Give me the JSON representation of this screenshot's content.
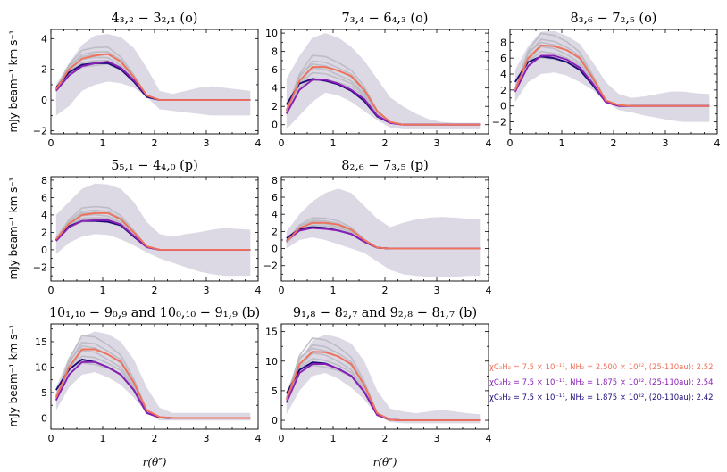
{
  "figure": {
    "ylabel": "mJy beam⁻¹ km s⁻¹",
    "xlabel": "r(θ″)"
  },
  "colors": {
    "model_a": "#f0715a",
    "model_b": "#8a1fb5",
    "model_c": "#1f0a7a",
    "grid_models": "#b9b9c2",
    "obs_band": "#dcd8e4"
  },
  "legend": [
    {
      "chi": "χC₃H₂ = 7.5 × 10⁻¹¹, ",
      "nh": "NH₂ = 2.500 × 10²², (25-110au): 2.52",
      "color": "#f0715a"
    },
    {
      "chi": "χC₃H₂ = 7.5 × 10⁻¹¹, ",
      "nh": "NH₂ = 1.875 × 10²², (25-110au): 2.54",
      "color": "#8a1fb5"
    },
    {
      "chi": "χC₃H₂ = 7.5 × 10⁻¹¹, ",
      "nh": "NH₂ = 1.875 × 10²², (20-110au): 2.42",
      "color": "#1f0a7a"
    }
  ],
  "chart_data": [
    {
      "type": "line",
      "title": "4₃,₂ − 3₂,₁ (o)",
      "xlim": [
        0,
        4
      ],
      "ylim": [
        -2.2,
        4.6
      ],
      "yticks": [
        -2,
        0,
        2,
        4
      ],
      "xticks": [
        0,
        1,
        2,
        3,
        4
      ],
      "x": [
        0.1,
        0.35,
        0.6,
        0.85,
        1.1,
        1.35,
        1.6,
        1.85,
        2.1,
        2.35,
        2.6,
        2.85,
        3.1,
        3.35,
        3.6,
        3.85
      ],
      "band_upper": [
        1.0,
        2.4,
        3.6,
        4.2,
        4.3,
        4.1,
        3.4,
        2.1,
        0.6,
        0.4,
        0.6,
        0.8,
        0.9,
        0.8,
        0.7,
        0.6
      ],
      "band_lower": [
        -1.0,
        -0.4,
        0.6,
        1.0,
        1.2,
        1.1,
        0.8,
        0.2,
        -0.6,
        -0.7,
        -0.8,
        -0.9,
        -1.0,
        -1.0,
        -1.0,
        -1.0
      ],
      "series": [
        {
          "name": "model_a",
          "values": [
            0.7,
            2.0,
            2.7,
            2.9,
            3.0,
            2.5,
            1.5,
            0.3,
            0.0,
            0,
            0,
            0,
            0,
            0,
            0,
            0
          ]
        },
        {
          "name": "model_b",
          "values": [
            0.6,
            1.6,
            2.2,
            2.4,
            2.5,
            2.1,
            1.3,
            0.3,
            0.0,
            0,
            0,
            0,
            0,
            0,
            0,
            0
          ]
        },
        {
          "name": "model_c",
          "values": [
            0.8,
            1.8,
            2.3,
            2.4,
            2.4,
            2.0,
            1.2,
            0.2,
            0.0,
            0,
            0,
            0,
            0,
            0,
            0,
            0
          ]
        }
      ]
    },
    {
      "type": "line",
      "title": "7₃,₄ − 6₄,₃ (o)",
      "xlim": [
        0,
        4
      ],
      "ylim": [
        -1,
        10.4
      ],
      "yticks": [
        0,
        2,
        4,
        6,
        8,
        10
      ],
      "xticks": [
        0,
        1,
        2,
        3,
        4
      ],
      "x": [
        0.1,
        0.35,
        0.6,
        0.85,
        1.1,
        1.35,
        1.6,
        1.85,
        2.1,
        2.35,
        2.6,
        2.85,
        3.1,
        3.35,
        3.6,
        3.85
      ],
      "band_upper": [
        5.0,
        7.5,
        9.5,
        10.0,
        9.5,
        8.5,
        7.0,
        5.0,
        3.0,
        2.0,
        1.2,
        0.6,
        0.3,
        0.2,
        0.2,
        0.2
      ],
      "band_lower": [
        -0.5,
        1.0,
        2.5,
        3.5,
        3.2,
        2.5,
        1.5,
        0.5,
        -0.3,
        -0.5,
        -0.5,
        -0.5,
        -0.5,
        -0.5,
        -0.5,
        -0.5
      ],
      "series": [
        {
          "name": "model_a",
          "values": [
            1.5,
            4.8,
            6.3,
            6.3,
            5.9,
            5.3,
            3.8,
            1.5,
            0.3,
            0,
            0,
            0,
            0,
            0,
            0,
            0
          ]
        },
        {
          "name": "model_b",
          "values": [
            1.2,
            3.8,
            4.9,
            4.9,
            4.5,
            3.8,
            2.8,
            1.0,
            0.2,
            0,
            0,
            0,
            0,
            0,
            0,
            0
          ]
        },
        {
          "name": "model_c",
          "values": [
            2.2,
            4.5,
            5.0,
            4.8,
            4.4,
            3.7,
            2.6,
            0.9,
            0.2,
            0,
            0,
            0,
            0,
            0,
            0,
            0
          ]
        }
      ]
    },
    {
      "type": "line",
      "title": "8₃,₆ − 7₂,₅ (o)",
      "xlim": [
        0,
        4
      ],
      "ylim": [
        -3.5,
        9.6
      ],
      "yticks": [
        -2,
        0,
        2,
        4,
        6,
        8
      ],
      "xticks": [
        0,
        1,
        2,
        3,
        4
      ],
      "x": [
        0.1,
        0.35,
        0.6,
        0.85,
        1.1,
        1.35,
        1.6,
        1.85,
        2.1,
        2.35,
        2.6,
        2.85,
        3.1,
        3.35,
        3.6,
        3.85
      ],
      "band_upper": [
        4.5,
        7.5,
        9.3,
        9.4,
        8.8,
        7.8,
        5.5,
        3.0,
        1.5,
        1.0,
        1.2,
        1.5,
        1.8,
        1.8,
        1.6,
        1.5
      ],
      "band_lower": [
        0.5,
        3.0,
        4.0,
        4.2,
        3.8,
        3.0,
        2.0,
        0.5,
        -0.5,
        -0.8,
        -1.2,
        -1.5,
        -1.8,
        -2.0,
        -2.0,
        -2.0
      ],
      "series": [
        {
          "name": "model_a",
          "values": [
            2.0,
            6.0,
            7.6,
            7.5,
            7.0,
            6.0,
            3.5,
            0.7,
            0.1,
            0,
            0,
            0,
            0,
            0,
            0,
            0
          ]
        },
        {
          "name": "model_b",
          "values": [
            1.8,
            5.0,
            6.3,
            6.3,
            5.8,
            4.8,
            2.8,
            0.5,
            0.0,
            0,
            0,
            0,
            0,
            0,
            0,
            0
          ]
        },
        {
          "name": "model_c",
          "values": [
            3.0,
            5.5,
            6.2,
            6.0,
            5.5,
            4.5,
            2.6,
            0.5,
            0.0,
            0,
            0,
            0,
            0,
            0,
            0,
            0
          ]
        }
      ]
    },
    {
      "type": "line",
      "title": "5₅,₁ − 4₄,₀ (p)",
      "xlim": [
        0,
        4
      ],
      "ylim": [
        -3.6,
        8.4
      ],
      "yticks": [
        -2,
        0,
        2,
        4,
        6,
        8
      ],
      "xticks": [
        0,
        1,
        2,
        3,
        4
      ],
      "x": [
        0.1,
        0.35,
        0.6,
        0.85,
        1.1,
        1.35,
        1.6,
        1.85,
        2.1,
        2.35,
        2.6,
        2.85,
        3.1,
        3.35,
        3.6,
        3.85
      ],
      "band_upper": [
        4.0,
        5.5,
        7.0,
        7.6,
        7.5,
        7.0,
        5.5,
        3.2,
        1.8,
        1.5,
        1.8,
        2.0,
        2.3,
        2.5,
        2.4,
        2.3
      ],
      "band_lower": [
        -0.5,
        0.8,
        1.5,
        1.8,
        1.7,
        1.2,
        0.5,
        -0.3,
        -1.0,
        -1.5,
        -2.0,
        -2.5,
        -2.8,
        -3.0,
        -3.0,
        -3.0
      ],
      "series": [
        {
          "name": "model_a",
          "values": [
            1.2,
            3.0,
            4.0,
            4.2,
            4.2,
            3.5,
            2.0,
            0.4,
            0.0,
            0,
            0,
            0,
            0,
            0,
            0,
            0
          ]
        },
        {
          "name": "model_b",
          "values": [
            1.0,
            2.6,
            3.3,
            3.4,
            3.4,
            2.9,
            1.6,
            0.3,
            0.0,
            0,
            0,
            0,
            0,
            0,
            0,
            0
          ]
        },
        {
          "name": "model_c",
          "values": [
            1.1,
            2.7,
            3.3,
            3.3,
            3.2,
            2.8,
            1.5,
            0.3,
            0.0,
            0,
            0,
            0,
            0,
            0,
            0,
            0
          ]
        }
      ]
    },
    {
      "type": "line",
      "title": "8₂,₆ − 7₃,₅ (p)",
      "xlim": [
        0,
        4
      ],
      "ylim": [
        -3.8,
        8.4
      ],
      "yticks": [
        -2,
        0,
        2,
        4,
        6,
        8
      ],
      "xticks": [
        0,
        1,
        2,
        3,
        4
      ],
      "x": [
        0.1,
        0.35,
        0.6,
        0.85,
        1.1,
        1.35,
        1.6,
        1.85,
        2.1,
        2.35,
        2.6,
        2.85,
        3.1,
        3.35,
        3.6,
        3.85
      ],
      "band_upper": [
        2.0,
        4.0,
        5.5,
        6.5,
        7.0,
        6.5,
        5.0,
        3.5,
        2.5,
        3.0,
        3.4,
        3.6,
        3.7,
        3.6,
        3.5,
        3.4
      ],
      "band_lower": [
        0.0,
        1.0,
        1.3,
        1.0,
        0.5,
        0.0,
        -0.5,
        -1.5,
        -2.5,
        -3.0,
        -3.2,
        -3.3,
        -3.3,
        -3.3,
        -3.2,
        -3.2
      ],
      "series": [
        {
          "name": "model_a",
          "values": [
            0.8,
            2.4,
            3.0,
            3.0,
            2.8,
            2.2,
            1.0,
            0.1,
            0.0,
            0,
            0,
            0,
            0,
            0,
            0,
            0
          ]
        },
        {
          "name": "model_b",
          "values": [
            0.9,
            2.1,
            2.4,
            2.3,
            2.1,
            1.7,
            0.8,
            0.1,
            0.0,
            0,
            0,
            0,
            0,
            0,
            0,
            0
          ]
        },
        {
          "name": "model_c",
          "values": [
            1.2,
            2.3,
            2.5,
            2.4,
            2.1,
            1.7,
            0.8,
            0.1,
            0.0,
            0,
            0,
            0,
            0,
            0,
            0,
            0
          ]
        }
      ]
    },
    {
      "type": "line",
      "title": "10₁,₁₀ − 9₀,₉ and 10₀,₁₀ − 9₁,₉ (b)",
      "xlim": [
        0,
        4
      ],
      "ylim": [
        -2.2,
        18.5
      ],
      "yticks": [
        0,
        5,
        10,
        15
      ],
      "xticks": [
        0,
        1,
        2,
        3,
        4
      ],
      "x": [
        0.1,
        0.35,
        0.6,
        0.85,
        1.1,
        1.35,
        1.6,
        1.85,
        2.1,
        2.35,
        2.6,
        2.85,
        3.1,
        3.35,
        3.6,
        3.85
      ],
      "band_upper": [
        6.0,
        12.0,
        16.0,
        17.0,
        16.5,
        15.0,
        11.5,
        6.0,
        2.0,
        1.0,
        1.0,
        1.0,
        1.0,
        1.0,
        1.0,
        1.0
      ],
      "band_lower": [
        1.5,
        6.0,
        8.5,
        9.0,
        8.0,
        6.5,
        4.0,
        1.0,
        -0.5,
        -0.5,
        -0.5,
        -0.5,
        -0.5,
        -0.5,
        -0.5,
        -0.5
      ],
      "series": [
        {
          "name": "model_a",
          "values": [
            4.0,
            10.0,
            13.5,
            13.5,
            12.5,
            11.0,
            7.0,
            1.5,
            0.2,
            0,
            0,
            0,
            0,
            0,
            0,
            0
          ]
        },
        {
          "name": "model_b",
          "values": [
            3.5,
            8.5,
            11.0,
            11.0,
            10.0,
            8.5,
            5.5,
            1.0,
            0.1,
            0,
            0,
            0,
            0,
            0,
            0,
            0
          ]
        },
        {
          "name": "model_c",
          "values": [
            5.5,
            9.5,
            11.5,
            11.0,
            10.0,
            8.5,
            5.5,
            1.0,
            0.1,
            0,
            0,
            0,
            0,
            0,
            0,
            0
          ]
        }
      ]
    },
    {
      "type": "line",
      "title": "9₁,₈ − 8₂,₇ and 9₂,₈ − 8₁,₇ (b)",
      "xlim": [
        0,
        4
      ],
      "ylim": [
        -1.5,
        16.3
      ],
      "yticks": [
        0,
        5,
        10,
        15
      ],
      "xticks": [
        0,
        1,
        2,
        3,
        4
      ],
      "x": [
        0.1,
        0.35,
        0.6,
        0.85,
        1.1,
        1.35,
        1.6,
        1.85,
        2.1,
        2.35,
        2.6,
        2.85,
        3.1,
        3.35,
        3.6,
        3.85
      ],
      "band_upper": [
        5.0,
        10.0,
        13.5,
        14.5,
        14.0,
        13.0,
        10.0,
        5.0,
        2.0,
        1.5,
        1.2,
        1.5,
        1.8,
        1.5,
        1.2,
        1.0
      ],
      "band_lower": [
        1.0,
        5.0,
        7.5,
        8.0,
        7.0,
        5.5,
        3.5,
        0.8,
        -0.3,
        -0.5,
        -0.5,
        -0.5,
        -0.5,
        -0.5,
        -0.5,
        -0.5
      ],
      "series": [
        {
          "name": "model_a",
          "values": [
            3.5,
            9.5,
            11.6,
            11.5,
            10.8,
            9.5,
            6.0,
            1.2,
            0.1,
            0,
            0,
            0,
            0,
            0,
            0,
            0
          ]
        },
        {
          "name": "model_b",
          "values": [
            3.0,
            8.0,
            9.5,
            9.5,
            8.7,
            7.5,
            4.8,
            0.9,
            0.1,
            0,
            0,
            0,
            0,
            0,
            0,
            0
          ]
        },
        {
          "name": "model_c",
          "values": [
            4.5,
            8.5,
            9.8,
            9.6,
            8.7,
            7.5,
            4.8,
            0.9,
            0.1,
            0,
            0,
            0,
            0,
            0,
            0,
            0
          ]
        }
      ]
    }
  ]
}
